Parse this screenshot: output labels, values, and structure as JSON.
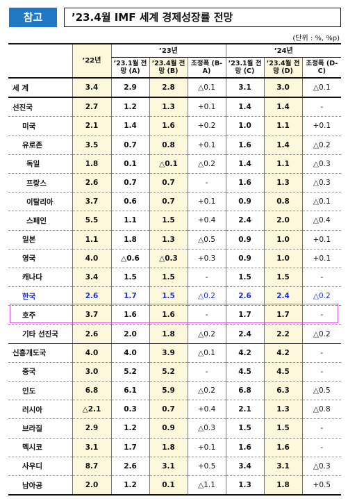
{
  "header": {
    "badge": "참고",
    "title": "’23.4월 IMF 세계 경제성장률 전망"
  },
  "unit_note": "(단위 : %, %p)",
  "table": {
    "col_22": "’22년",
    "group_23": "’23년",
    "group_24": "’24년",
    "sub": [
      "’23.1월 전망 (A)",
      "’23.4월 전망 (B)",
      "조정폭 (B-A)",
      "’23.1월 전망 (C)",
      "’23.4월 전망 (D)",
      "조정폭 (D-C)"
    ],
    "rows": [
      {
        "name": "세  계",
        "v": [
          "3.4",
          "2.9",
          "2.8",
          "△0.1",
          "3.1",
          "3.0",
          "△0.1"
        ]
      },
      {
        "name": "선진국",
        "v": [
          "2.7",
          "1.2",
          "1.3",
          "+0.1",
          "1.4",
          "1.4",
          "-"
        ]
      },
      {
        "name": "미국",
        "v": [
          "2.1",
          "1.4",
          "1.6",
          "+0.2",
          "1.0",
          "1.1",
          "+0.1"
        ]
      },
      {
        "name": "유로존",
        "v": [
          "3.5",
          "0.7",
          "0.8",
          "+0.1",
          "1.6",
          "1.4",
          "△0.2"
        ]
      },
      {
        "name": "독일",
        "v": [
          "1.8",
          "0.1",
          "△0.1",
          "△0.2",
          "1.4",
          "1.1",
          "△0.3"
        ]
      },
      {
        "name": "프랑스",
        "v": [
          "2.6",
          "0.7",
          "0.7",
          "-",
          "1.6",
          "1.3",
          "△0.3"
        ]
      },
      {
        "name": "이탈리아",
        "v": [
          "3.7",
          "0.6",
          "0.7",
          "+0.1",
          "0.9",
          "0.8",
          "△0.1"
        ]
      },
      {
        "name": "스페인",
        "v": [
          "5.5",
          "1.1",
          "1.5",
          "+0.4",
          "2.4",
          "2.0",
          "△0.4"
        ]
      },
      {
        "name": "일본",
        "v": [
          "1.1",
          "1.8",
          "1.3",
          "△0.5",
          "0.9",
          "1.0",
          "+0.1"
        ]
      },
      {
        "name": "영국",
        "v": [
          "4.0",
          "△0.6",
          "△0.3",
          "+0.3",
          "0.9",
          "1.0",
          "+0.1"
        ]
      },
      {
        "name": "캐나다",
        "v": [
          "3.4",
          "1.5",
          "1.5",
          "-",
          "1.5",
          "1.5",
          "-"
        ]
      },
      {
        "name": "한국",
        "v": [
          "2.6",
          "1.7",
          "1.5",
          "△0.2",
          "2.6",
          "2.4",
          "△0.2"
        ]
      },
      {
        "name": "호주",
        "v": [
          "3.7",
          "1.6",
          "1.6",
          "-",
          "1.7",
          "1.7",
          "-"
        ]
      },
      {
        "name": "기타 선진국",
        "v": [
          "2.6",
          "2.0",
          "1.8",
          "△0.2",
          "2.4",
          "2.2",
          "△0.2"
        ]
      },
      {
        "name": "신흥개도국",
        "v": [
          "4.0",
          "4.0",
          "3.9",
          "△0.1",
          "4.2",
          "4.2",
          "-"
        ]
      },
      {
        "name": "중국",
        "v": [
          "3.0",
          "5.2",
          "5.2",
          "-",
          "4.5",
          "4.5",
          "-"
        ]
      },
      {
        "name": "인도",
        "v": [
          "6.8",
          "6.1",
          "5.9",
          "△0.2",
          "6.8",
          "6.3",
          "△0.5"
        ]
      },
      {
        "name": "러시아",
        "v": [
          "△2.1",
          "0.3",
          "0.7",
          "+0.4",
          "2.1",
          "1.3",
          "△0.8"
        ]
      },
      {
        "name": "브라질",
        "v": [
          "2.9",
          "1.2",
          "0.9",
          "△0.3",
          "1.5",
          "1.5",
          "-"
        ]
      },
      {
        "name": "멕시코",
        "v": [
          "3.1",
          "1.7",
          "1.8",
          "+0.1",
          "1.6",
          "1.6",
          "-"
        ]
      },
      {
        "name": "사우디",
        "v": [
          "8.7",
          "2.6",
          "3.1",
          "+0.5",
          "3.4",
          "3.1",
          "△0.3"
        ]
      },
      {
        "name": "남아공",
        "v": [
          "2.0",
          "1.2",
          "0.1",
          "△1.1",
          "1.3",
          "1.8",
          "+0.5"
        ]
      }
    ]
  }
}
